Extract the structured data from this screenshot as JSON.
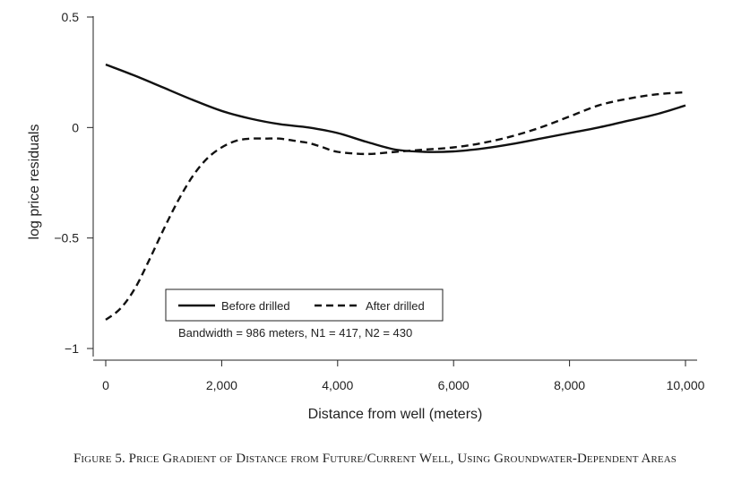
{
  "chart_data": {
    "type": "line",
    "xlabel": "Distance from well (meters)",
    "ylabel": "log price residuals",
    "xlim": [
      0,
      10000
    ],
    "ylim": [
      -1.05,
      0.52
    ],
    "x_ticks": [
      0,
      2000,
      4000,
      6000,
      8000,
      10000
    ],
    "x_tick_labels": [
      "0",
      "2,000",
      "4,000",
      "6,000",
      "8,000",
      "10,000"
    ],
    "y_ticks": [
      -1,
      -0.5,
      0,
      0.5
    ],
    "y_tick_labels": [
      "−1",
      "−0.5",
      "0",
      "0.5"
    ],
    "grid": false,
    "legend_position": "bottom-left",
    "series": [
      {
        "name": "Before drilled",
        "style": "solid",
        "x": [
          0,
          500,
          1000,
          1500,
          2000,
          2500,
          3000,
          3500,
          4000,
          4500,
          5000,
          5500,
          6000,
          6500,
          7000,
          7500,
          8000,
          8500,
          9000,
          9500,
          10000
        ],
        "y": [
          0.285,
          0.235,
          0.18,
          0.125,
          0.075,
          0.04,
          0.015,
          0.0,
          -0.025,
          -0.065,
          -0.1,
          -0.11,
          -0.108,
          -0.095,
          -0.075,
          -0.05,
          -0.025,
          0.0,
          0.03,
          0.06,
          0.1
        ]
      },
      {
        "name": "After drilled",
        "style": "dashed",
        "x": [
          0,
          250,
          500,
          750,
          1000,
          1250,
          1500,
          1750,
          2000,
          2250,
          2500,
          2750,
          3000,
          3250,
          3500,
          3750,
          4000,
          4500,
          5000,
          5500,
          6000,
          6500,
          7000,
          7500,
          8000,
          8500,
          9000,
          9500,
          10000
        ],
        "y": [
          -0.87,
          -0.82,
          -0.73,
          -0.6,
          -0.46,
          -0.33,
          -0.22,
          -0.14,
          -0.09,
          -0.06,
          -0.05,
          -0.05,
          -0.05,
          -0.06,
          -0.07,
          -0.09,
          -0.11,
          -0.12,
          -0.11,
          -0.1,
          -0.09,
          -0.07,
          -0.04,
          0.0,
          0.05,
          0.1,
          0.13,
          0.15,
          0.16
        ]
      }
    ],
    "note": "Bandwidth = 986 meters, N1 = 417, N2 = 430"
  },
  "caption": "Figure 5. Price Gradient of Distance from Future/Current Well, Using Groundwater-Dependent Areas"
}
